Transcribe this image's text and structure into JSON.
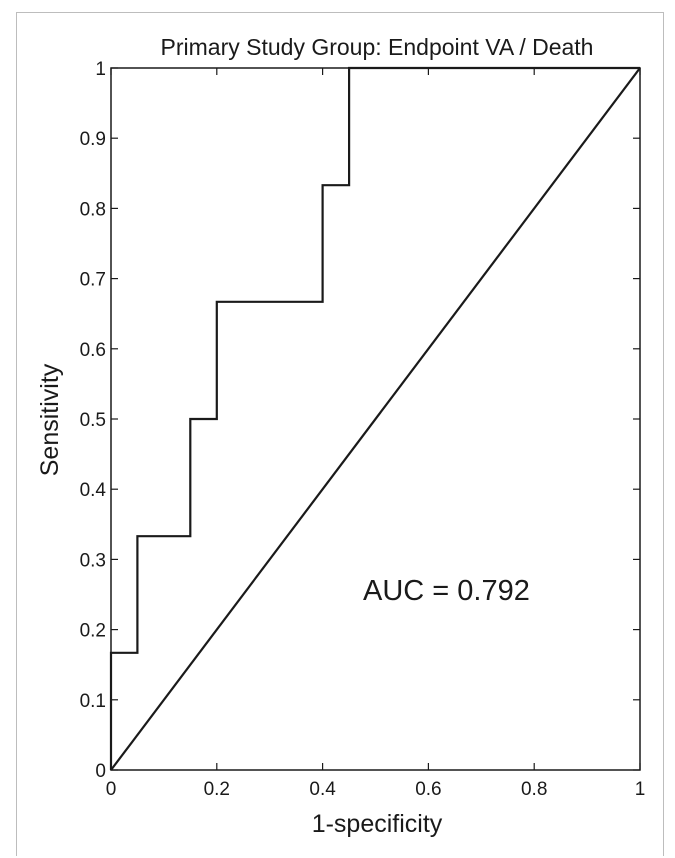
{
  "chart_data": {
    "type": "line",
    "title": "Primary Study Group: Endpoint VA / Death",
    "xlabel": "1-specificity",
    "ylabel": "Sensitivity",
    "xlim": [
      0,
      1
    ],
    "ylim": [
      0,
      1
    ],
    "grid": false,
    "x_ticks": [
      0,
      0.2,
      0.4,
      0.6,
      0.8,
      1
    ],
    "y_ticks": [
      0,
      0.1,
      0.2,
      0.3,
      0.4,
      0.5,
      0.6,
      0.7,
      0.8,
      0.9,
      1
    ],
    "x_tick_labels": [
      "0",
      "0.2",
      "0.4",
      "0.6",
      "0.8",
      "1"
    ],
    "y_tick_labels": [
      "0",
      "0.1",
      "0.2",
      "0.3",
      "0.4",
      "0.5",
      "0.6",
      "0.7",
      "0.8",
      "0.9",
      "1"
    ],
    "series": [
      {
        "style": "step",
        "color": "#1a1a1a",
        "x": [
          0,
          0,
          0.05,
          0.05,
          0.15,
          0.15,
          0.2,
          0.2,
          0.4,
          0.4,
          0.45,
          0.45,
          1
        ],
        "y": [
          0,
          0.167,
          0.167,
          0.333,
          0.333,
          0.5,
          0.5,
          0.667,
          0.667,
          0.833,
          0.833,
          1,
          1
        ]
      },
      {
        "style": "reference-diagonal",
        "color": "#1a1a1a",
        "x": [
          0,
          1
        ],
        "y": [
          0,
          1
        ]
      }
    ],
    "annotations": [
      {
        "text": "AUC = 0.792",
        "x": 0.7,
        "y": 0.3
      }
    ]
  }
}
